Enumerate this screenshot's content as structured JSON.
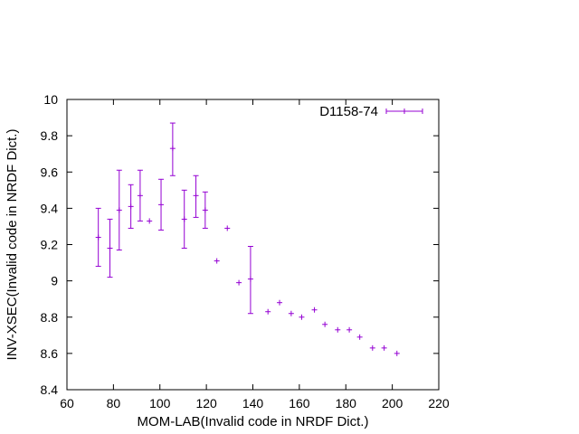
{
  "chart_data": {
    "type": "scatter",
    "xlabel": "MOM-LAB(Invalid code in NRDF Dict.)",
    "ylabel": "INV-XSEC(Invalid code in NRDF Dict.)",
    "xlim": [
      60,
      220
    ],
    "ylim": [
      8.4,
      10
    ],
    "xticks": [
      60,
      80,
      100,
      120,
      140,
      160,
      180,
      200,
      220
    ],
    "yticks": [
      8.4,
      8.6,
      8.8,
      9,
      9.2,
      9.4,
      9.6,
      9.8,
      10
    ],
    "ytick_labels": [
      "8.4",
      "8.6",
      "8.8",
      "9",
      "9.2",
      "9.4",
      "9.6",
      "9.8",
      "10"
    ],
    "legend_position": "top-right",
    "series_color": "#9400d3",
    "series": [
      {
        "name": "D1158-74",
        "x_err": 0.5,
        "points": [
          {
            "x": 73.5,
            "y": 9.24,
            "ylo": 9.08,
            "yhi": 9.4
          },
          {
            "x": 78.5,
            "y": 9.18,
            "ylo": 9.02,
            "yhi": 9.34
          },
          {
            "x": 82.5,
            "y": 9.39,
            "ylo": 9.17,
            "yhi": 9.61
          },
          {
            "x": 87.5,
            "y": 9.41,
            "ylo": 9.29,
            "yhi": 9.53
          },
          {
            "x": 91.5,
            "y": 9.47,
            "ylo": 9.33,
            "yhi": 9.61
          },
          {
            "x": 95.5,
            "y": 9.33
          },
          {
            "x": 100.5,
            "y": 9.42,
            "ylo": 9.28,
            "yhi": 9.56
          },
          {
            "x": 105.5,
            "y": 9.73,
            "ylo": 9.58,
            "yhi": 9.87
          },
          {
            "x": 110.5,
            "y": 9.34,
            "ylo": 9.18,
            "yhi": 9.5
          },
          {
            "x": 115.5,
            "y": 9.47,
            "ylo": 9.35,
            "yhi": 9.58
          },
          {
            "x": 119.5,
            "y": 9.39,
            "ylo": 9.29,
            "yhi": 9.49
          },
          {
            "x": 124.5,
            "y": 9.11
          },
          {
            "x": 129.0,
            "y": 9.29
          },
          {
            "x": 134.0,
            "y": 8.99
          },
          {
            "x": 139.0,
            "y": 9.01,
            "ylo": 8.82,
            "yhi": 9.19
          },
          {
            "x": 146.5,
            "y": 8.83
          },
          {
            "x": 151.5,
            "y": 8.88
          },
          {
            "x": 156.5,
            "y": 8.82
          },
          {
            "x": 161.0,
            "y": 8.8
          },
          {
            "x": 166.5,
            "y": 8.84
          },
          {
            "x": 171.0,
            "y": 8.76
          },
          {
            "x": 176.5,
            "y": 8.73
          },
          {
            "x": 181.5,
            "y": 8.73
          },
          {
            "x": 186.0,
            "y": 8.69
          },
          {
            "x": 191.5,
            "y": 8.63
          },
          {
            "x": 196.5,
            "y": 8.63
          },
          {
            "x": 202.0,
            "y": 8.6
          }
        ]
      }
    ]
  }
}
